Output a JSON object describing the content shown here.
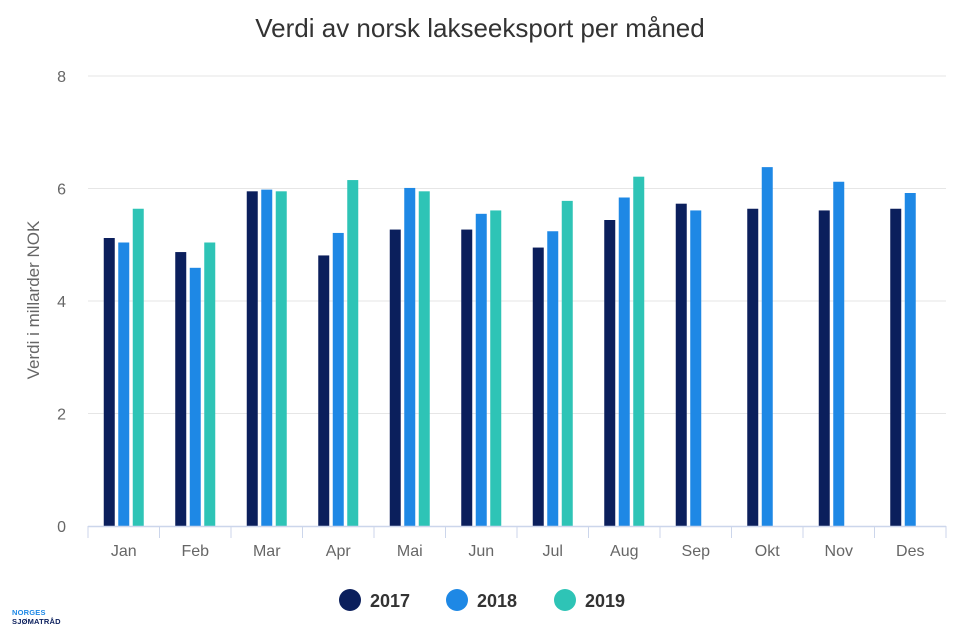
{
  "chart_data": {
    "type": "bar",
    "title": "Verdi av norsk lakseeksport per måned",
    "ylabel": "Verdi i millarder NOK",
    "xlabel": "",
    "ylim": [
      0,
      8
    ],
    "yticks": [
      0,
      2,
      4,
      6,
      8
    ],
    "grid": true,
    "legend_position": "bottom",
    "categories": [
      "Jan",
      "Feb",
      "Mar",
      "Apr",
      "Mai",
      "Jun",
      "Jul",
      "Aug",
      "Sep",
      "Okt",
      "Nov",
      "Des"
    ],
    "series": [
      {
        "name": "2017",
        "color": "#0b1f5c",
        "values": [
          5.12,
          4.87,
          5.95,
          4.81,
          5.27,
          5.27,
          4.95,
          5.44,
          5.73,
          5.64,
          5.61,
          5.64
        ]
      },
      {
        "name": "2018",
        "color": "#1e88e5",
        "values": [
          5.04,
          4.59,
          5.98,
          5.21,
          6.01,
          5.55,
          5.24,
          5.84,
          5.61,
          6.38,
          6.12,
          5.92
        ]
      },
      {
        "name": "2019",
        "color": "#2ec4b6",
        "values": [
          5.64,
          5.04,
          5.95,
          6.15,
          5.95,
          5.61,
          5.78,
          6.21,
          null,
          null,
          null,
          null
        ]
      }
    ]
  },
  "colors": {
    "grid": "#e6e6e6",
    "axis": "#ccd6eb"
  },
  "logo": {
    "line1": "NORGES",
    "line2": "SJØMATRÅD"
  }
}
